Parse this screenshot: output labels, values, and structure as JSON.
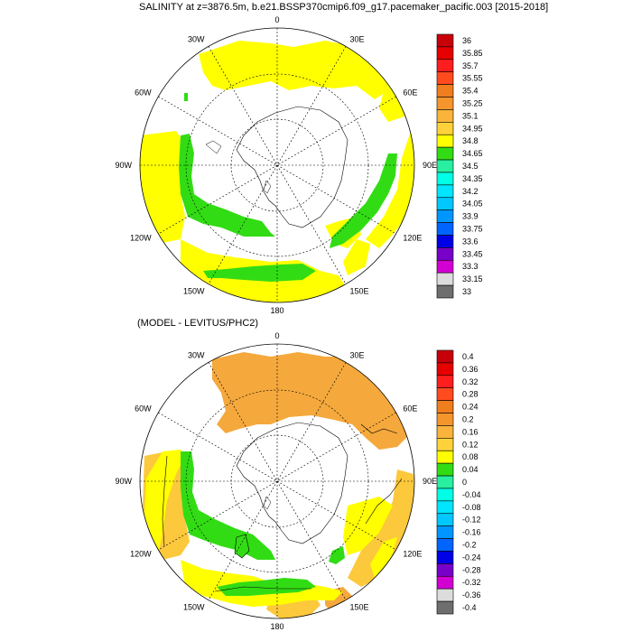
{
  "panels": [
    {
      "title": "SALINITY at z=3876.5m, b.e21.BSSP370cmip6.f09_g17.pacemaker_pacific.003 [2015-2018]",
      "lon_labels": [
        "0",
        "30E",
        "60E",
        "90E",
        "120E",
        "150E",
        "180",
        "150W",
        "120W",
        "90W",
        "60W",
        "30W"
      ],
      "colorbar": {
        "labels": [
          "36",
          "35.85",
          "35.7",
          "35.55",
          "35.4",
          "35.25",
          "35.1",
          "34.95",
          "34.8",
          "34.65",
          "34.5",
          "34.35",
          "34.2",
          "34.05",
          "33.9",
          "33.75",
          "33.6",
          "33.45",
          "33.3",
          "33.15",
          "33"
        ],
        "colors": [
          "#c8000a",
          "#e60000",
          "#ff1e1e",
          "#ff4b1e",
          "#f07d1e",
          "#f5962d",
          "#fab43c",
          "#ffd23c",
          "#ffff00",
          "#32dc14",
          "#28f0a0",
          "#00ffe6",
          "#00e6ff",
          "#00c8ff",
          "#0096ff",
          "#0064ff",
          "#0000e6",
          "#7800c8",
          "#d200d2",
          "#dcdcdc",
          "#6e6e6e"
        ]
      }
    },
    {
      "title": "(MODEL - LEVITUS/PHC2)",
      "lon_labels": [
        "0",
        "30E",
        "60E",
        "90E",
        "120E",
        "150E",
        "180",
        "150W",
        "120W",
        "90W",
        "60W",
        "30W"
      ],
      "colorbar": {
        "labels": [
          "0.4",
          "0.36",
          "0.32",
          "0.28",
          "0.24",
          "0.2",
          "0.16",
          "0.12",
          "0.08",
          "0.04",
          "0",
          "-0.04",
          "-0.08",
          "-0.12",
          "-0.16",
          "-0.2",
          "-0.24",
          "-0.28",
          "-0.32",
          "-0.36",
          "-0.4"
        ],
        "colors": [
          "#c8000a",
          "#e60000",
          "#ff1e1e",
          "#ff4b1e",
          "#f07d1e",
          "#f5962d",
          "#fab43c",
          "#ffd23c",
          "#ffff00",
          "#32dc14",
          "#28f0a0",
          "#00ffe6",
          "#00e6ff",
          "#00c8ff",
          "#0096ff",
          "#0064ff",
          "#0000e6",
          "#7800c8",
          "#d200d2",
          "#dcdcdc",
          "#6e6e6e"
        ]
      }
    }
  ]
}
